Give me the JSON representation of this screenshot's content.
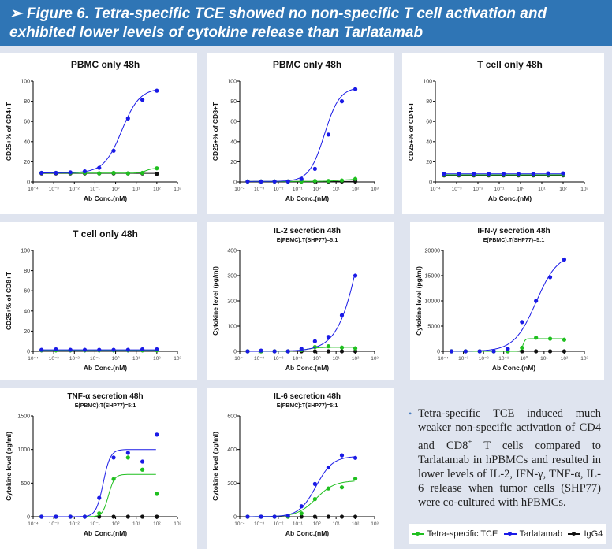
{
  "header": {
    "arrow": "➢",
    "title": "Figure 6. Tetra-specific TCE showed no non-specific T cell activation and exhibited lower levels of cytokine release than Tarlatamab"
  },
  "colors": {
    "tetra": "#1fbf1f",
    "tarlatamab": "#1a1ae6",
    "igg4": "#111111",
    "header_bg": "#2f75b5"
  },
  "legend": [
    {
      "label": "Tetra-specific TCE",
      "color": "#1fbf1f"
    },
    {
      "label": "Tarlatamab",
      "color": "#1a1ae6"
    },
    {
      "label": "IgG4",
      "color": "#111111"
    }
  ],
  "note": {
    "text_before": "Tetra-specific TCE induced much weaker non-specific activation of CD4 and CD8",
    "sup": "+",
    "text_after": " T cells compared to Tarlatamab in hPBMCs and resulted in lower levels of IL-2, IFN-γ, TNF-α, IL-6 release when tumor cells (SHP77) were co-cultured with hPBMCs."
  },
  "chart_data": [
    {
      "type": "line",
      "title": "PBMC only 48h",
      "subtitle": "",
      "xlabel": "Ab Conc.(nM)",
      "ylabel": "CD25+% of CD4+T",
      "xscale": "log",
      "xlim": [
        0.0001,
        1000
      ],
      "ylim": [
        0,
        100
      ],
      "yticks": [
        0,
        20,
        40,
        60,
        80,
        100
      ],
      "x": [
        0.000256,
        0.00128,
        0.0064,
        0.032,
        0.16,
        0.8,
        4,
        20,
        100
      ],
      "series": [
        {
          "key": "tetra",
          "values": [
            9,
            9,
            9,
            9,
            8.5,
            9,
            8.5,
            9,
            13.5
          ],
          "fit": {
            "bottom": 8.8,
            "top": 13.5,
            "ec50": 30,
            "hill": 3
          }
        },
        {
          "key": "tarlatamab",
          "values": [
            9,
            9,
            9.5,
            10.5,
            14,
            31,
            63,
            81.5,
            90.5
          ],
          "fit": {
            "bottom": 9,
            "top": 93,
            "ec50": 2,
            "hill": 1
          }
        },
        {
          "key": "igg4",
          "values": [
            8.5,
            8.5,
            8.5,
            8.5,
            8.5,
            8.5,
            8.5,
            8.5,
            8
          ],
          "fit": {
            "bottom": 8.5,
            "top": 8.5,
            "ec50": 1,
            "hill": 1
          }
        }
      ]
    },
    {
      "type": "line",
      "title": "PBMC only 48h",
      "subtitle": "",
      "xlabel": "Ab Conc.(nM)",
      "ylabel": "CD25+% of CD8+T",
      "xscale": "log",
      "xlim": [
        0.0001,
        1000
      ],
      "ylim": [
        0,
        100
      ],
      "yticks": [
        0,
        20,
        40,
        60,
        80,
        100
      ],
      "x": [
        0.000256,
        0.00128,
        0.0064,
        0.032,
        0.16,
        0.8,
        4,
        20,
        100
      ],
      "series": [
        {
          "key": "tetra",
          "values": [
            0.5,
            0.5,
            0.5,
            0.5,
            0.5,
            1,
            1,
            1.5,
            3
          ],
          "fit": {
            "bottom": 0.5,
            "top": 3,
            "ec50": 20,
            "hill": 1
          }
        },
        {
          "key": "tarlatamab",
          "values": [
            0.5,
            0.5,
            0.5,
            0.5,
            3,
            13,
            47,
            80,
            92
          ],
          "fit": {
            "bottom": 0.5,
            "top": 94,
            "ec50": 2.5,
            "hill": 1.1
          }
        },
        {
          "key": "igg4",
          "values": [
            0.5,
            0.5,
            0.5,
            0.5,
            0.5,
            0.5,
            0.5,
            0.5,
            0.5
          ],
          "fit": {
            "bottom": 0.5,
            "top": 0.5,
            "ec50": 1,
            "hill": 1
          }
        }
      ]
    },
    {
      "type": "line",
      "title": "T cell only 48h",
      "subtitle": "",
      "xlabel": "Ab Conc.(nM)",
      "ylabel": "CD25+% of CD4+T",
      "xscale": "log",
      "xlim": [
        0.0001,
        1000
      ],
      "ylim": [
        0,
        100
      ],
      "yticks": [
        0,
        20,
        40,
        60,
        80,
        100
      ],
      "x": [
        0.000256,
        0.00128,
        0.0064,
        0.032,
        0.16,
        0.8,
        4,
        20,
        100
      ],
      "series": [
        {
          "key": "tetra",
          "values": [
            7,
            7,
            7,
            7,
            7,
            7,
            7,
            7,
            7
          ],
          "fit": {
            "bottom": 7,
            "top": 7,
            "ec50": 1,
            "hill": 1
          }
        },
        {
          "key": "tarlatamab",
          "values": [
            8,
            8,
            8,
            8,
            8,
            8,
            8,
            8.5,
            8.5
          ],
          "fit": {
            "bottom": 8,
            "top": 8,
            "ec50": 1,
            "hill": 1
          }
        },
        {
          "key": "igg4",
          "values": [
            6.5,
            6.5,
            6.5,
            6.5,
            6.5,
            6.5,
            6.5,
            6.5,
            6.5
          ],
          "fit": {
            "bottom": 6.5,
            "top": 6.5,
            "ec50": 1,
            "hill": 1
          }
        }
      ]
    },
    {
      "type": "line",
      "title": "T cell only 48h",
      "subtitle": "",
      "xlabel": "Ab Conc.(nM)",
      "ylabel": "CD25+% of CD8+T",
      "xscale": "log",
      "xlim": [
        0.0001,
        1000
      ],
      "ylim": [
        0,
        100
      ],
      "yticks": [
        0,
        20,
        40,
        60,
        80,
        100
      ],
      "x": [
        0.000256,
        0.00128,
        0.0064,
        0.032,
        0.16,
        0.8,
        4,
        20,
        100
      ],
      "series": [
        {
          "key": "tetra",
          "values": [
            1,
            1,
            1,
            1,
            1,
            1,
            1,
            1,
            1
          ],
          "fit": {
            "bottom": 1,
            "top": 1,
            "ec50": 1,
            "hill": 1
          }
        },
        {
          "key": "tarlatamab",
          "values": [
            1.5,
            2,
            1.5,
            1.5,
            1.5,
            1.5,
            1.5,
            2,
            2
          ],
          "fit": {
            "bottom": 1.5,
            "top": 1.5,
            "ec50": 1,
            "hill": 1
          }
        },
        {
          "key": "igg4",
          "values": [
            1,
            1,
            1,
            1,
            1,
            1,
            1,
            1,
            1
          ],
          "fit": {
            "bottom": 1,
            "top": 1,
            "ec50": 1,
            "hill": 1
          }
        }
      ]
    },
    {
      "type": "line",
      "title": "IL-2 secretion 48h",
      "subtitle": "E(PBMC):T(SHP77)=5:1",
      "xlabel": "Ab Conc.(nM)",
      "ylabel": "Cytokine level (pg/ml)",
      "xscale": "log",
      "xlim": [
        0.0001,
        1000
      ],
      "ylim": [
        0,
        400
      ],
      "yticks": [
        0,
        100,
        200,
        300,
        400
      ],
      "x": [
        0.000256,
        0.00128,
        0.0064,
        0.032,
        0.16,
        0.8,
        4,
        20,
        100
      ],
      "series": [
        {
          "key": "tetra",
          "values": [
            0,
            0,
            0,
            0,
            5,
            17,
            20,
            15,
            12
          ],
          "fit": {
            "bottom": 0,
            "top": 16,
            "ec50": 0.3,
            "hill": 1.5
          }
        },
        {
          "key": "tarlatamab",
          "values": [
            0,
            3,
            0,
            0,
            10,
            40,
            57,
            143,
            300
          ],
          "fit": {
            "bottom": 0,
            "top": 1000,
            "ec50": 300,
            "hill": 0.7
          }
        },
        {
          "key": "igg4",
          "values": [
            0,
            0,
            0,
            0,
            0,
            0,
            0,
            0,
            0
          ],
          "fit": {
            "bottom": 0,
            "top": 0,
            "ec50": 1,
            "hill": 1
          }
        }
      ]
    },
    {
      "type": "line",
      "title": "IFN-γ secretion 48h",
      "subtitle": "E(PBMC):T(SHP77)=5:1",
      "xlabel": "Ab Conc.(nM)",
      "ylabel": "Cytokine level (pg/ml)",
      "xscale": "log",
      "xlim": [
        0.0001,
        1000
      ],
      "ylim": [
        0,
        20000
      ],
      "yticks": [
        0,
        5000,
        10000,
        15000,
        20000
      ],
      "x": [
        0.000256,
        0.00128,
        0.0064,
        0.032,
        0.16,
        0.8,
        4,
        20,
        100
      ],
      "series": [
        {
          "key": "tetra",
          "values": [
            0,
            0,
            0,
            0,
            0,
            700,
            2700,
            2500,
            2300
          ],
          "fit": {
            "bottom": 0,
            "top": 2500,
            "ec50": 0.9,
            "hill": 8
          }
        },
        {
          "key": "tarlatamab",
          "values": [
            0,
            0,
            0,
            0,
            500,
            5800,
            10000,
            14700,
            18200
          ],
          "fit": {
            "bottom": 0,
            "top": 19500,
            "ec50": 4,
            "hill": 0.8
          }
        },
        {
          "key": "igg4",
          "values": [
            0,
            0,
            0,
            0,
            0,
            0,
            0,
            0,
            0
          ],
          "fit": {
            "bottom": 0,
            "top": 0,
            "ec50": 1,
            "hill": 1
          }
        }
      ]
    },
    {
      "type": "line",
      "title": "TNF-α secretion 48h",
      "subtitle": "E(PBMC):T(SHP77)=5:1",
      "xlabel": "Ab Conc.(nM)",
      "ylabel": "Cytokine level (pg/ml)",
      "xscale": "log",
      "xlim": [
        0.0001,
        1000
      ],
      "ylim": [
        0,
        1500
      ],
      "yticks": [
        0,
        500,
        1000,
        1500
      ],
      "x": [
        0.000256,
        0.00128,
        0.0064,
        0.032,
        0.16,
        0.8,
        4,
        20,
        100
      ],
      "series": [
        {
          "key": "tetra",
          "values": [
            0,
            0,
            0,
            0,
            50,
            560,
            880,
            700,
            340
          ],
          "fit": {
            "bottom": 0,
            "top": 630,
            "ec50": 0.45,
            "hill": 3
          }
        },
        {
          "key": "tarlatamab",
          "values": [
            0,
            0,
            0,
            0,
            280,
            880,
            950,
            820,
            1220
          ],
          "fit": {
            "bottom": 0,
            "top": 1000,
            "ec50": 0.25,
            "hill": 2.5
          }
        },
        {
          "key": "igg4",
          "values": [
            0,
            0,
            0,
            0,
            0,
            0,
            0,
            0,
            0
          ],
          "fit": {
            "bottom": 0,
            "top": 0,
            "ec50": 1,
            "hill": 1
          }
        }
      ]
    },
    {
      "type": "line",
      "title": "IL-6 secretion 48h",
      "subtitle": "E(PBMC):T(SHP77)=5:1",
      "xlabel": "Ab Conc.(nM)",
      "ylabel": "Cytokine level (pg/ml)",
      "xscale": "log",
      "xlim": [
        0.0001,
        1000
      ],
      "ylim": [
        0,
        600
      ],
      "yticks": [
        0,
        200,
        400,
        600
      ],
      "x": [
        0.000256,
        0.00128,
        0.0064,
        0.032,
        0.16,
        0.8,
        4,
        20,
        100
      ],
      "series": [
        {
          "key": "tetra",
          "values": [
            0,
            0,
            0,
            0,
            20,
            105,
            168,
            175,
            227
          ],
          "fit": {
            "bottom": 0,
            "top": 215,
            "ec50": 0.9,
            "hill": 0.9
          }
        },
        {
          "key": "tarlatamab",
          "values": [
            0,
            0,
            0,
            5,
            62,
            195,
            293,
            365,
            350
          ],
          "fit": {
            "bottom": 0,
            "top": 360,
            "ec50": 0.9,
            "hill": 1
          }
        },
        {
          "key": "igg4",
          "values": [
            0,
            0,
            0,
            0,
            0,
            0,
            0,
            0,
            0
          ],
          "fit": {
            "bottom": 0,
            "top": 0,
            "ec50": 1,
            "hill": 1
          }
        }
      ]
    }
  ]
}
